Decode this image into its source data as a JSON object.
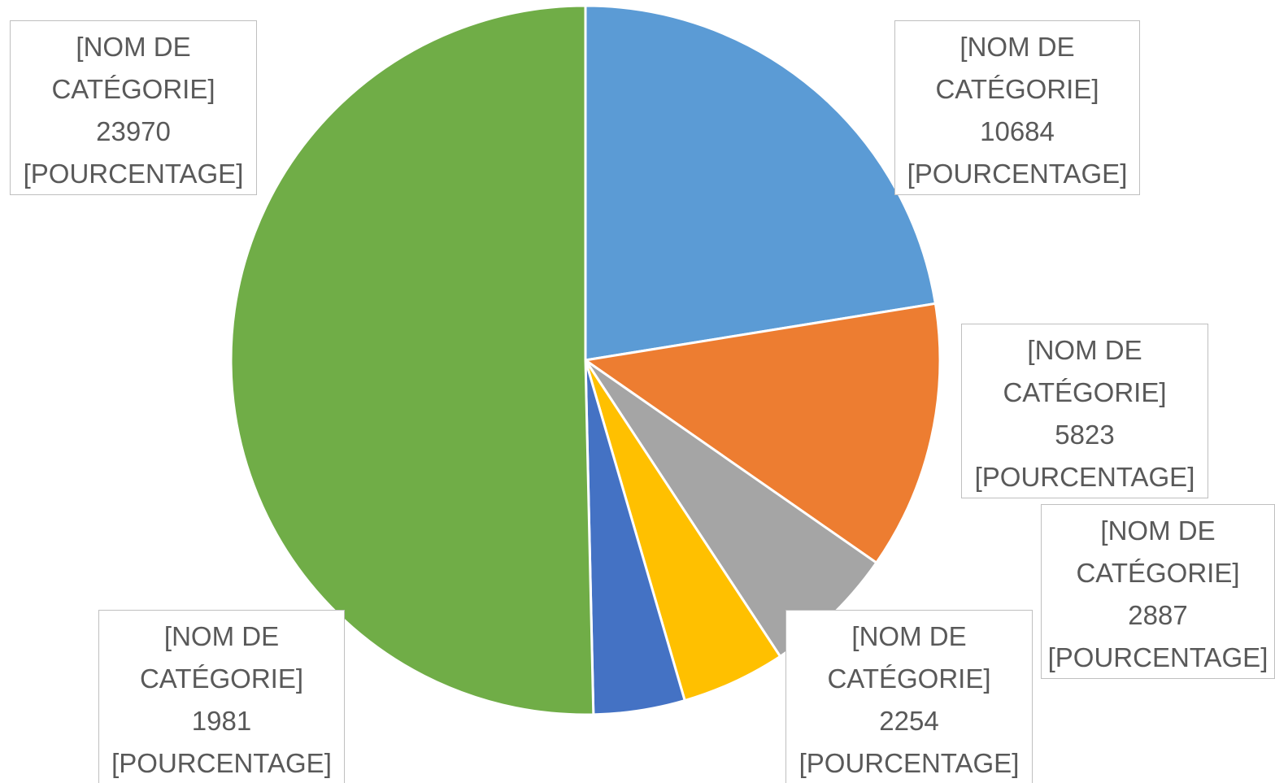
{
  "chart_data": {
    "type": "pie",
    "categories": [
      "[NOM DE CATÉGORIE]",
      "[NOM DE CATÉGORIE]",
      "[NOM DE CATÉGORIE]",
      "[NOM DE CATÉGORIE]",
      "[NOM DE CATÉGORIE]",
      "[NOM DE CATÉGORIE]"
    ],
    "values": [
      10684,
      5823,
      2887,
      2254,
      1981,
      23970
    ],
    "percentage_labels": [
      "[POURCENTAGE]",
      "[POURCENTAGE]",
      "[POURCENTAGE]",
      "[POURCENTAGE]",
      "[POURCENTAGE]",
      "[POURCENTAGE]"
    ],
    "colors": [
      "#5b9bd5",
      "#ed7d31",
      "#a5a5a5",
      "#ffc000",
      "#4472c4",
      "#70ad47"
    ]
  }
}
